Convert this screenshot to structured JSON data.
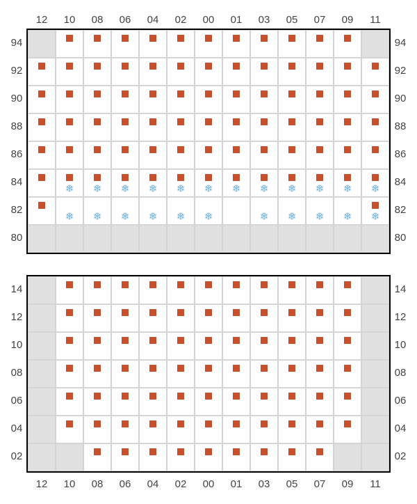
{
  "layout": {
    "cell_size": 40,
    "border_color": "#d4d4d4",
    "frame_color": "#000000",
    "filled_bg": "#ffffff",
    "gray_bg": "#e0e0e0",
    "label_color": "#444444",
    "label_fontsize": 15
  },
  "marker": {
    "dot_color": "#c9502e",
    "dot_size": 10,
    "snow_glyph": "❄",
    "snow_color": "#6db3e8",
    "snow_fontsize": 15
  },
  "columns": [
    "12",
    "10",
    "08",
    "06",
    "04",
    "02",
    "00",
    "01",
    "03",
    "05",
    "07",
    "09",
    "11"
  ],
  "top_section": {
    "rows": [
      "94",
      "92",
      "90",
      "88",
      "86",
      "84",
      "82",
      "80"
    ],
    "cells": {
      "94": {
        "white": [
          1,
          2,
          3,
          4,
          5,
          6,
          7,
          8,
          9,
          10,
          11
        ],
        "dot": [
          1,
          2,
          3,
          4,
          5,
          6,
          7,
          8,
          9,
          10,
          11
        ],
        "snow": []
      },
      "92": {
        "white": [
          0,
          1,
          2,
          3,
          4,
          5,
          6,
          7,
          8,
          9,
          10,
          11,
          12
        ],
        "dot": [
          0,
          1,
          2,
          3,
          4,
          5,
          6,
          7,
          8,
          9,
          10,
          11,
          12
        ],
        "snow": []
      },
      "90": {
        "white": [
          0,
          1,
          2,
          3,
          4,
          5,
          6,
          7,
          8,
          9,
          10,
          11,
          12
        ],
        "dot": [
          0,
          1,
          2,
          3,
          4,
          5,
          6,
          7,
          8,
          9,
          10,
          11,
          12
        ],
        "snow": []
      },
      "88": {
        "white": [
          0,
          1,
          2,
          3,
          4,
          5,
          6,
          7,
          8,
          9,
          10,
          11,
          12
        ],
        "dot": [
          0,
          1,
          2,
          3,
          4,
          5,
          6,
          7,
          8,
          9,
          10,
          11,
          12
        ],
        "snow": []
      },
      "86": {
        "white": [
          0,
          1,
          2,
          3,
          4,
          5,
          6,
          7,
          8,
          9,
          10,
          11,
          12
        ],
        "dot": [
          0,
          1,
          2,
          3,
          4,
          5,
          6,
          7,
          8,
          9,
          10,
          11,
          12
        ],
        "snow": []
      },
      "84": {
        "white": [
          0,
          1,
          2,
          3,
          4,
          5,
          6,
          7,
          8,
          9,
          10,
          11,
          12
        ],
        "dot": [
          0,
          1,
          2,
          3,
          4,
          5,
          6,
          7,
          8,
          9,
          10,
          11,
          12
        ],
        "snow": [
          1,
          2,
          3,
          4,
          5,
          6,
          7,
          8,
          9,
          10,
          11,
          12
        ]
      },
      "82": {
        "white": [
          0,
          1,
          2,
          3,
          4,
          5,
          6,
          7,
          8,
          9,
          10,
          11,
          12
        ],
        "dot": [
          0,
          12
        ],
        "snow": [
          1,
          2,
          3,
          4,
          5,
          6,
          8,
          9,
          10,
          11,
          12
        ]
      },
      "80": {
        "white": [],
        "dot": [],
        "snow": []
      }
    }
  },
  "bottom_section": {
    "rows": [
      "14",
      "12",
      "10",
      "08",
      "06",
      "04",
      "02"
    ],
    "cells": {
      "14": {
        "white": [
          1,
          2,
          3,
          4,
          5,
          6,
          7,
          8,
          9,
          10,
          11
        ],
        "dot": [
          1,
          2,
          3,
          4,
          5,
          6,
          7,
          8,
          9,
          10,
          11
        ],
        "snow": []
      },
      "12": {
        "white": [
          1,
          2,
          3,
          4,
          5,
          6,
          7,
          8,
          9,
          10,
          11
        ],
        "dot": [
          1,
          2,
          3,
          4,
          5,
          6,
          7,
          8,
          9,
          10,
          11
        ],
        "snow": []
      },
      "10": {
        "white": [
          1,
          2,
          3,
          4,
          5,
          6,
          7,
          8,
          9,
          10,
          11
        ],
        "dot": [
          1,
          2,
          3,
          4,
          5,
          6,
          7,
          8,
          9,
          10,
          11
        ],
        "snow": []
      },
      "08": {
        "white": [
          1,
          2,
          3,
          4,
          5,
          6,
          7,
          8,
          9,
          10,
          11
        ],
        "dot": [
          1,
          2,
          3,
          4,
          5,
          6,
          7,
          8,
          9,
          10,
          11
        ],
        "snow": []
      },
      "06": {
        "white": [
          1,
          2,
          3,
          4,
          5,
          6,
          7,
          8,
          9,
          10,
          11
        ],
        "dot": [
          1,
          2,
          3,
          4,
          5,
          6,
          7,
          8,
          9,
          10,
          11
        ],
        "snow": []
      },
      "04": {
        "white": [
          1,
          2,
          3,
          4,
          5,
          6,
          7,
          8,
          9,
          10,
          11
        ],
        "dot": [
          1,
          2,
          3,
          4,
          5,
          6,
          7,
          8,
          9,
          10,
          11
        ],
        "snow": []
      },
      "02": {
        "white": [
          2,
          3,
          4,
          5,
          6,
          7,
          8,
          9,
          10
        ],
        "dot": [
          2,
          3,
          4,
          5,
          6,
          7,
          8,
          9,
          10
        ],
        "snow": []
      }
    }
  }
}
